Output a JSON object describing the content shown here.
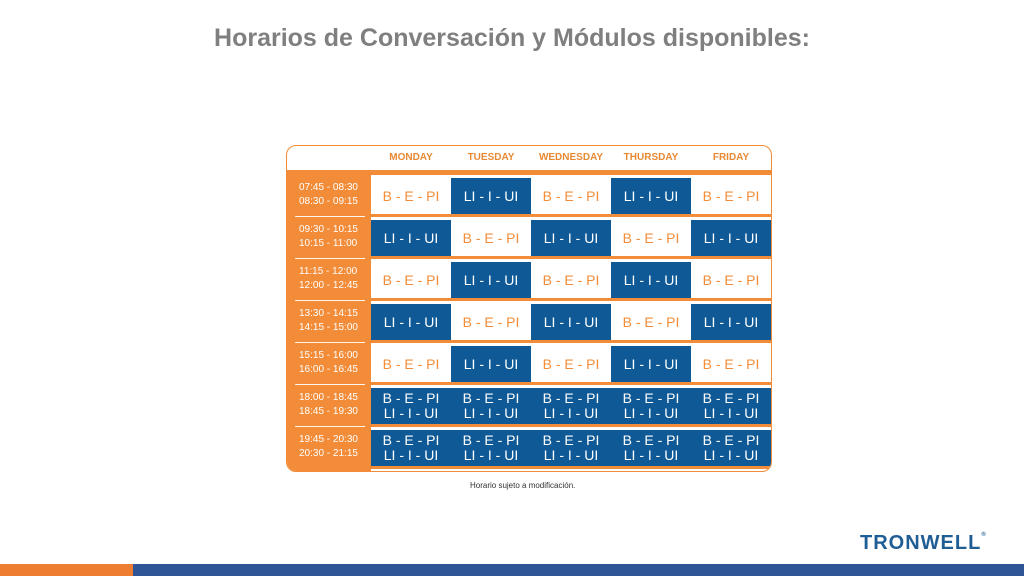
{
  "title": "Horarios de Conversación y Módulos disponibles:",
  "days": [
    "MONDAY",
    "TUESDAY",
    "WEDNESDAY",
    "THURSDAY",
    "FRIDAY"
  ],
  "rows": [
    {
      "times": [
        "07:45 - 08:30",
        "08:30 - 09:15"
      ],
      "cells": [
        [
          "B - E - PI"
        ],
        [
          "LI - I - UI"
        ],
        [
          "B - E - PI"
        ],
        [
          "LI - I - UI"
        ],
        [
          "B - E - PI"
        ]
      ],
      "styles": [
        "white",
        "blue",
        "white",
        "blue",
        "white"
      ]
    },
    {
      "times": [
        "09:30 - 10:15",
        "10:15 - 11:00"
      ],
      "cells": [
        [
          "LI - I - UI"
        ],
        [
          "B - E - PI"
        ],
        [
          "LI - I - UI"
        ],
        [
          "B - E - PI"
        ],
        [
          "LI - I - UI"
        ]
      ],
      "styles": [
        "blue",
        "white",
        "blue",
        "white",
        "blue"
      ]
    },
    {
      "times": [
        "11:15 - 12:00",
        "12:00 - 12:45"
      ],
      "cells": [
        [
          "B - E - PI"
        ],
        [
          "LI - I - UI"
        ],
        [
          "B - E - PI"
        ],
        [
          "LI - I - UI"
        ],
        [
          "B - E - PI"
        ]
      ],
      "styles": [
        "white",
        "blue",
        "white",
        "blue",
        "white"
      ]
    },
    {
      "times": [
        "13:30 - 14:15",
        "14:15 - 15:00"
      ],
      "cells": [
        [
          "LI - I - UI"
        ],
        [
          "B - E - PI"
        ],
        [
          "LI - I - UI"
        ],
        [
          "B - E - PI"
        ],
        [
          "LI - I - UI"
        ]
      ],
      "styles": [
        "blue",
        "white",
        "blue",
        "white",
        "blue"
      ]
    },
    {
      "times": [
        "15:15 - 16:00",
        "16:00 - 16:45"
      ],
      "cells": [
        [
          "B - E - PI"
        ],
        [
          "LI - I - UI"
        ],
        [
          "B - E - PI"
        ],
        [
          "LI - I - UI"
        ],
        [
          "B - E - PI"
        ]
      ],
      "styles": [
        "white",
        "blue",
        "white",
        "blue",
        "white"
      ]
    },
    {
      "times": [
        "18:00 - 18:45",
        "18:45 - 19:30"
      ],
      "cells": [
        [
          "B - E - PI",
          "LI - I - UI"
        ],
        [
          "B - E - PI",
          "LI - I - UI"
        ],
        [
          "B - E - PI",
          "LI - I - UI"
        ],
        [
          "B - E - PI",
          "LI - I - UI"
        ],
        [
          "B - E - PI",
          "LI - I - UI"
        ]
      ],
      "styles": [
        "blue",
        "blue",
        "blue",
        "blue",
        "blue"
      ]
    },
    {
      "times": [
        "19:45 - 20:30",
        "20:30 - 21:15"
      ],
      "cells": [
        [
          "B - E - PI",
          "LI - I - UI"
        ],
        [
          "B - E - PI",
          "LI - I - UI"
        ],
        [
          "B - E - PI",
          "LI - I - UI"
        ],
        [
          "B - E - PI",
          "LI - I - UI"
        ],
        [
          "B - E - PI",
          "LI - I - UI"
        ]
      ],
      "styles": [
        "blue",
        "blue",
        "blue",
        "blue",
        "blue"
      ]
    }
  ],
  "note": "Horario sujeto a modificación.",
  "logo": {
    "text": "TRONWELL",
    "mark": "®"
  },
  "colors": {
    "orange": "#f28c38",
    "blue": "#0f5a96",
    "title": "#7f7f7f",
    "footer_blue": "#2f5597",
    "footer_orange": "#ef7d31"
  }
}
